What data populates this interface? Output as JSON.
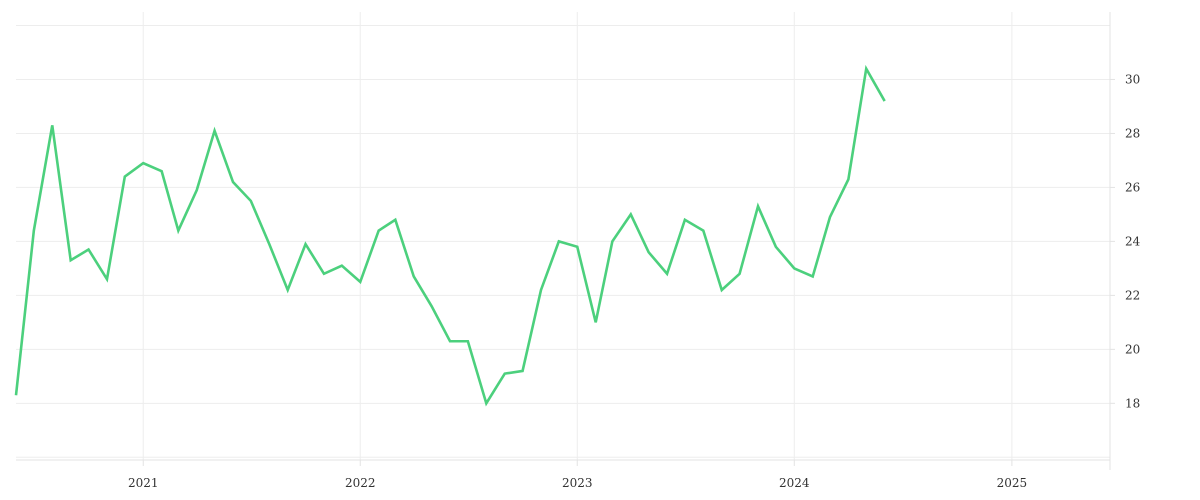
{
  "chart_data": {
    "type": "line",
    "title": "",
    "xlabel": "",
    "ylabel": "",
    "x_range": [
      "2020-06-01",
      "2025-06-15"
    ],
    "ylim": [
      15.9,
      32.5
    ],
    "y_axis_position": "right",
    "x_ticks": [
      {
        "date": "2021-01-01",
        "label": "2021"
      },
      {
        "date": "2022-01-01",
        "label": "2022"
      },
      {
        "date": "2023-01-01",
        "label": "2023"
      },
      {
        "date": "2024-01-01",
        "label": "2024"
      },
      {
        "date": "2025-01-01",
        "label": "2025"
      }
    ],
    "y_ticks": [
      18,
      20,
      22,
      24,
      26,
      28,
      30
    ],
    "grid": true,
    "legend": "none",
    "line_color": "#4cd07d",
    "series": [
      {
        "values": [
          [
            "2020-06-01",
            18.3
          ],
          [
            "2020-07-01",
            24.4
          ],
          [
            "2020-08-01",
            28.3
          ],
          [
            "2020-09-01",
            23.3
          ],
          [
            "2020-10-01",
            23.7
          ],
          [
            "2020-11-01",
            22.6
          ],
          [
            "2020-12-01",
            26.4
          ],
          [
            "2021-01-01",
            26.9
          ],
          [
            "2021-02-01",
            26.6
          ],
          [
            "2021-03-01",
            24.4
          ],
          [
            "2021-04-01",
            25.9
          ],
          [
            "2021-05-01",
            28.1
          ],
          [
            "2021-06-01",
            26.2
          ],
          [
            "2021-07-01",
            25.5
          ],
          [
            "2021-08-01",
            23.9
          ],
          [
            "2021-09-01",
            22.2
          ],
          [
            "2021-10-01",
            23.9
          ],
          [
            "2021-11-01",
            22.8
          ],
          [
            "2021-12-01",
            23.1
          ],
          [
            "2022-01-01",
            22.5
          ],
          [
            "2022-02-01",
            24.4
          ],
          [
            "2022-03-01",
            24.8
          ],
          [
            "2022-04-01",
            22.7
          ],
          [
            "2022-05-01",
            21.6
          ],
          [
            "2022-06-01",
            20.3
          ],
          [
            "2022-07-01",
            20.3
          ],
          [
            "2022-08-01",
            18.0
          ],
          [
            "2022-09-01",
            19.1
          ],
          [
            "2022-10-01",
            19.2
          ],
          [
            "2022-11-01",
            22.2
          ],
          [
            "2022-12-01",
            24.0
          ],
          [
            "2023-01-01",
            23.8
          ],
          [
            "2023-02-01",
            21.0
          ],
          [
            "2023-03-01",
            24.0
          ],
          [
            "2023-04-01",
            25.0
          ],
          [
            "2023-05-01",
            23.6
          ],
          [
            "2023-06-01",
            22.8
          ],
          [
            "2023-07-01",
            24.8
          ],
          [
            "2023-08-01",
            24.4
          ],
          [
            "2023-09-01",
            22.2
          ],
          [
            "2023-10-01",
            22.8
          ],
          [
            "2023-11-01",
            25.3
          ],
          [
            "2023-12-01",
            23.8
          ],
          [
            "2024-01-01",
            23.0
          ],
          [
            "2024-02-01",
            22.7
          ],
          [
            "2024-03-01",
            24.9
          ],
          [
            "2024-04-01",
            26.3
          ],
          [
            "2024-05-01",
            30.4
          ],
          [
            "2024-06-01",
            29.2
          ]
        ]
      }
    ]
  }
}
